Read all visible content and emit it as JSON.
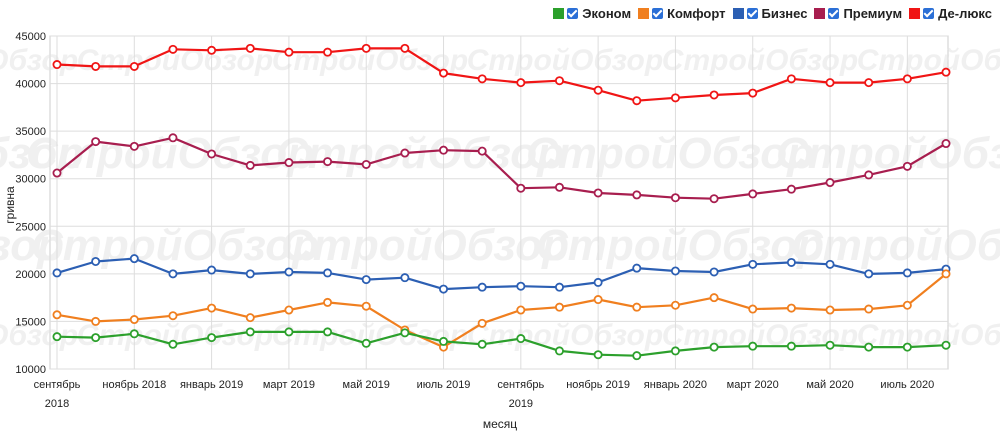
{
  "legend": [
    {
      "name": "Эконом",
      "color": "#2ca02c"
    },
    {
      "name": "Комфорт",
      "color": "#f07f1f"
    },
    {
      "name": "Бизнес",
      "color": "#2c5fb3"
    },
    {
      "name": "Премиум",
      "color": "#a81e4f"
    },
    {
      "name": "Де-люкс",
      "color": "#f01515"
    }
  ],
  "watermark": "СтройОбзор",
  "chart_data": {
    "type": "line",
    "xlabel": "месяц",
    "ylabel": "гривна",
    "ylim": [
      10000,
      45000
    ],
    "yticks": [
      10000,
      15000,
      20000,
      25000,
      30000,
      35000,
      40000,
      45000
    ],
    "grid": true,
    "legend_position": "top-right",
    "categories": [
      "сентябрь 2018",
      "октябрь 2018",
      "ноябрь 2018",
      "декабрь 2018",
      "январь 2019",
      "февраль 2019",
      "март 2019",
      "апрель 2019",
      "май 2019",
      "июнь 2019",
      "июль 2019",
      "август 2019",
      "сентябрь 2019",
      "октябрь 2019",
      "ноябрь 2019",
      "декабрь 2019",
      "январь 2020",
      "февраль 2020",
      "март 2020",
      "апрель 2020",
      "май 2020",
      "июнь 2020",
      "июль 2020",
      "август 2020"
    ],
    "xtick_labels": [
      {
        "index": 0,
        "lines": [
          "сентябрь",
          "2018"
        ]
      },
      {
        "index": 2,
        "lines": [
          "ноябрь 2018"
        ]
      },
      {
        "index": 4,
        "lines": [
          "январь 2019"
        ]
      },
      {
        "index": 6,
        "lines": [
          "март 2019"
        ]
      },
      {
        "index": 8,
        "lines": [
          "май 2019"
        ]
      },
      {
        "index": 10,
        "lines": [
          "июль 2019"
        ]
      },
      {
        "index": 12,
        "lines": [
          "сентябрь",
          "2019"
        ]
      },
      {
        "index": 14,
        "lines": [
          "ноябрь 2019"
        ]
      },
      {
        "index": 16,
        "lines": [
          "январь 2020"
        ]
      },
      {
        "index": 18,
        "lines": [
          "март 2020"
        ]
      },
      {
        "index": 20,
        "lines": [
          "май 2020"
        ]
      },
      {
        "index": 22,
        "lines": [
          "июль 2020"
        ]
      }
    ],
    "series": [
      {
        "name": "Де-люкс",
        "color": "#f01515",
        "values": [
          42000,
          41800,
          41800,
          43600,
          43500,
          43700,
          43300,
          43300,
          43700,
          43700,
          41100,
          40500,
          40100,
          40300,
          39300,
          38200,
          38500,
          38800,
          39000,
          40500,
          40100,
          40100,
          40500,
          41200
        ]
      },
      {
        "name": "Премиум",
        "color": "#a81e4f",
        "values": [
          30600,
          33900,
          33400,
          34300,
          32600,
          31400,
          31700,
          31800,
          31500,
          32700,
          33000,
          32900,
          29000,
          29100,
          28500,
          28300,
          28000,
          27900,
          28400,
          28900,
          29600,
          30400,
          31300,
          33700
        ]
      },
      {
        "name": "Бизнес",
        "color": "#2c5fb3",
        "values": [
          20100,
          21300,
          21600,
          20000,
          20400,
          20000,
          20200,
          20100,
          19400,
          19600,
          18400,
          18600,
          18700,
          18600,
          19100,
          20600,
          20300,
          20200,
          21000,
          21200,
          21000,
          20000,
          20100,
          20500
        ]
      },
      {
        "name": "Комфорт",
        "color": "#f07f1f",
        "values": [
          15700,
          15000,
          15200,
          15600,
          16400,
          15400,
          16200,
          17000,
          16600,
          14100,
          12300,
          14800,
          16200,
          16500,
          17300,
          16500,
          16700,
          17500,
          16300,
          16400,
          16200,
          16300,
          16700,
          20000
        ]
      },
      {
        "name": "Эконом",
        "color": "#2ca02c",
        "values": [
          13400,
          13300,
          13700,
          12600,
          13300,
          13900,
          13900,
          13900,
          12700,
          13800,
          12900,
          12600,
          13200,
          11900,
          11500,
          11400,
          11900,
          12300,
          12400,
          12400,
          12500,
          12300,
          12300,
          12500
        ]
      }
    ]
  }
}
